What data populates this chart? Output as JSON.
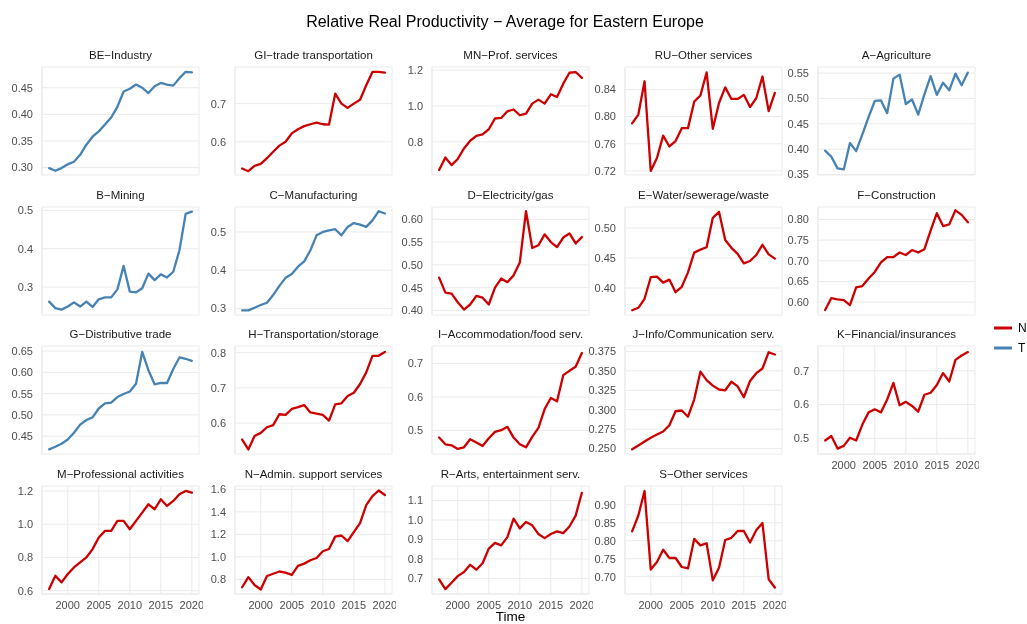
{
  "chart_data": [
    {
      "type": "line",
      "title": "BE−Industry",
      "annotations": [
        "Relative Real Productivity − Average for Eastern Europe"
      ],
      "tick_labels": "y",
      "grid": true,
      "x": [
        1997,
        1998,
        1999,
        2000,
        2001,
        2002,
        2003,
        2004,
        2005,
        2006,
        2007,
        2008,
        2009,
        2010,
        2011,
        2012,
        2013,
        2014,
        2015,
        2016,
        2017,
        2018,
        2019,
        2020
      ],
      "xlim": [
        1995.85,
        2021.15
      ],
      "xticks": [
        2000,
        2005,
        2010,
        2015,
        2020
      ],
      "ylim": [
        0.286,
        0.489
      ],
      "yticks": [
        {
          "value": 0.3,
          "label": "0.30"
        },
        {
          "value": 0.35,
          "label": "0.35"
        },
        {
          "value": 0.4,
          "label": "0.40"
        },
        0.45
      ],
      "series": [
        {
          "name": "T",
          "color": "#4682b4",
          "values": [
            0.299,
            0.294,
            0.299,
            0.306,
            0.311,
            0.324,
            0.343,
            0.358,
            0.368,
            0.381,
            0.394,
            0.414,
            0.443,
            0.448,
            0.456,
            0.45,
            0.44,
            0.453,
            0.459,
            0.456,
            0.454,
            0.468,
            0.48,
            0.479
          ]
        }
      ]
    },
    {
      "type": "line",
      "title": "GI−trade transportation",
      "tick_labels": "y",
      "grid": true,
      "x": [
        1997,
        1998,
        1999,
        2000,
        2001,
        2002,
        2003,
        2004,
        2005,
        2006,
        2007,
        2008,
        2009,
        2010,
        2011,
        2012,
        2013,
        2014,
        2015,
        2016,
        2017,
        2018,
        2019,
        2020
      ],
      "xlim": [
        1995.85,
        2021.15
      ],
      "xticks": [
        2000,
        2005,
        2010,
        2015,
        2020
      ],
      "ylim": [
        0.513,
        0.796
      ],
      "yticks": [
        0.6,
        0.7
      ],
      "series": [
        {
          "name": "N",
          "color": "#cc0000",
          "values": [
            0.53,
            0.523,
            0.537,
            0.542,
            0.557,
            0.574,
            0.59,
            0.6,
            0.622,
            0.633,
            0.641,
            0.646,
            0.65,
            0.646,
            0.645,
            0.726,
            0.7,
            0.689,
            0.7,
            0.71,
            0.748,
            0.783,
            0.783,
            0.781
          ]
        }
      ]
    },
    {
      "type": "line",
      "title": "MN−Prof. services",
      "tick_labels": "y",
      "grid": true,
      "x": [
        1997,
        1998,
        1999,
        2000,
        2001,
        2002,
        2003,
        2004,
        2005,
        2006,
        2007,
        2008,
        2009,
        2010,
        2011,
        2012,
        2013,
        2014,
        2015,
        2016,
        2017,
        2018,
        2019,
        2020
      ],
      "xlim": [
        1995.85,
        2021.15
      ],
      "xticks": [
        2000,
        2005,
        2010,
        2015,
        2020
      ],
      "ylim": [
        0.615,
        1.217
      ],
      "yticks": [
        0.8,
        {
          "value": 1,
          "label": "1.0"
        },
        1.2
      ],
      "series": [
        {
          "name": "N",
          "color": "#cc0000",
          "values": [
            0.643,
            0.713,
            0.67,
            0.704,
            0.763,
            0.806,
            0.833,
            0.841,
            0.87,
            0.93,
            0.933,
            0.97,
            0.98,
            0.948,
            0.957,
            1.013,
            1.035,
            1.013,
            1.065,
            1.05,
            1.124,
            1.185,
            1.189,
            1.156
          ]
        }
      ]
    },
    {
      "type": "line",
      "title": "RU−Other services",
      "tick_labels": "y",
      "grid": true,
      "x": [
        1997,
        1998,
        1999,
        2000,
        2001,
        2002,
        2003,
        2004,
        2005,
        2006,
        2007,
        2008,
        2009,
        2010,
        2011,
        2012,
        2013,
        2014,
        2015,
        2016,
        2017,
        2018,
        2019,
        2020
      ],
      "xlim": [
        1995.85,
        2021.15
      ],
      "xticks": [
        2000,
        2005,
        2010,
        2015,
        2020
      ],
      "ylim": [
        0.714,
        0.873
      ],
      "yticks": [
        0.72,
        0.76,
        {
          "value": 0.8,
          "label": "0.80"
        },
        0.84
      ],
      "series": [
        {
          "name": "N",
          "color": "#cc0000",
          "values": [
            0.79,
            0.803,
            0.852,
            0.72,
            0.739,
            0.772,
            0.756,
            0.764,
            0.783,
            0.783,
            0.822,
            0.831,
            0.865,
            0.782,
            0.82,
            0.843,
            0.826,
            0.826,
            0.832,
            0.814,
            0.827,
            0.859,
            0.808,
            0.835
          ]
        }
      ]
    },
    {
      "type": "line",
      "title": "A−Agriculture",
      "tick_labels": "y",
      "grid": true,
      "x": [
        1997,
        1998,
        1999,
        2000,
        2001,
        2002,
        2003,
        2004,
        2005,
        2006,
        2007,
        2008,
        2009,
        2010,
        2011,
        2012,
        2013,
        2014,
        2015,
        2016,
        2017,
        2018,
        2019,
        2020
      ],
      "xlim": [
        1995.85,
        2021.15
      ],
      "xticks": [
        2000,
        2005,
        2010,
        2015,
        2020
      ],
      "ylim": [
        0.349,
        0.562
      ],
      "yticks": [
        0.35,
        {
          "value": 0.4,
          "label": "0.40"
        },
        0.45,
        {
          "value": 0.5,
          "label": "0.50"
        },
        0.55
      ],
      "series": [
        {
          "name": "T",
          "color": "#4682b4",
          "values": [
            0.397,
            0.385,
            0.362,
            0.36,
            0.412,
            0.396,
            0.429,
            0.463,
            0.495,
            0.496,
            0.471,
            0.539,
            0.547,
            0.489,
            0.498,
            0.468,
            0.508,
            0.544,
            0.507,
            0.531,
            0.516,
            0.549,
            0.526,
            0.551
          ]
        }
      ]
    },
    {
      "type": "line",
      "title": "B−Mining",
      "tick_labels": "y",
      "grid": true,
      "x": [
        1997,
        1998,
        1999,
        2000,
        2001,
        2002,
        2003,
        2004,
        2005,
        2006,
        2007,
        2008,
        2009,
        2010,
        2011,
        2012,
        2013,
        2014,
        2015,
        2016,
        2017,
        2018,
        2019,
        2020
      ],
      "xlim": [
        1995.85,
        2021.15
      ],
      "xticks": [
        2000,
        2005,
        2010,
        2015,
        2020
      ],
      "ylim": [
        0.227,
        0.509
      ],
      "yticks": [
        0.3,
        0.4,
        0.5
      ],
      "series": [
        {
          "name": "T",
          "color": "#4682b4",
          "values": [
            0.262,
            0.245,
            0.241,
            0.249,
            0.26,
            0.249,
            0.262,
            0.248,
            0.268,
            0.273,
            0.273,
            0.294,
            0.355,
            0.288,
            0.286,
            0.297,
            0.335,
            0.318,
            0.333,
            0.325,
            0.34,
            0.396,
            0.491,
            0.497
          ]
        }
      ]
    },
    {
      "type": "line",
      "title": "C−Manufacturing",
      "tick_labels": "y",
      "grid": true,
      "x": [
        1997,
        1998,
        1999,
        2000,
        2001,
        2002,
        2003,
        2004,
        2005,
        2006,
        2007,
        2008,
        2009,
        2010,
        2011,
        2012,
        2013,
        2014,
        2015,
        2016,
        2017,
        2018,
        2019,
        2020
      ],
      "xlim": [
        1995.85,
        2021.15
      ],
      "xticks": [
        2000,
        2005,
        2010,
        2015,
        2020
      ],
      "ylim": [
        0.283,
        0.565
      ],
      "yticks": [
        0.3,
        0.4,
        0.5
      ],
      "series": [
        {
          "name": "T",
          "color": "#4682b4",
          "values": [
            0.295,
            0.295,
            0.302,
            0.309,
            0.315,
            0.335,
            0.359,
            0.38,
            0.39,
            0.409,
            0.423,
            0.452,
            0.491,
            0.5,
            0.504,
            0.507,
            0.491,
            0.513,
            0.523,
            0.519,
            0.513,
            0.53,
            0.554,
            0.548
          ]
        }
      ]
    },
    {
      "type": "line",
      "title": "D−Electricity/gas",
      "tick_labels": "y",
      "grid": true,
      "x": [
        1997,
        1998,
        1999,
        2000,
        2001,
        2002,
        2003,
        2004,
        2005,
        2006,
        2007,
        2008,
        2009,
        2010,
        2011,
        2012,
        2013,
        2014,
        2015,
        2016,
        2017,
        2018,
        2019,
        2020
      ],
      "xlim": [
        1995.85,
        2021.15
      ],
      "xticks": [
        2000,
        2005,
        2010,
        2015,
        2020
      ],
      "ylim": [
        0.39,
        0.627
      ],
      "yticks": [
        {
          "value": 0.4,
          "label": "0.40"
        },
        0.45,
        {
          "value": 0.5,
          "label": "0.50"
        },
        0.55,
        {
          "value": 0.6,
          "label": "0.60"
        }
      ],
      "series": [
        {
          "name": "N",
          "color": "#cc0000",
          "values": [
            0.472,
            0.439,
            0.437,
            0.418,
            0.402,
            0.413,
            0.432,
            0.428,
            0.413,
            0.45,
            0.47,
            0.462,
            0.477,
            0.505,
            0.618,
            0.537,
            0.543,
            0.567,
            0.55,
            0.539,
            0.56,
            0.569,
            0.547,
            0.561
          ]
        }
      ]
    },
    {
      "type": "line",
      "title": "E−Water/sewerage/waste",
      "tick_labels": "y",
      "grid": true,
      "x": [
        1997,
        1998,
        1999,
        2000,
        2001,
        2002,
        2003,
        2004,
        2005,
        2006,
        2007,
        2008,
        2009,
        2010,
        2011,
        2012,
        2013,
        2014,
        2015,
        2016,
        2017,
        2018,
        2019,
        2020
      ],
      "xlim": [
        1995.85,
        2021.15
      ],
      "xticks": [
        2000,
        2005,
        2010,
        2015,
        2020
      ],
      "ylim": [
        0.355,
        0.535
      ],
      "yticks": [
        {
          "value": 0.4,
          "label": "0.40"
        },
        0.45,
        {
          "value": 0.5,
          "label": "0.50"
        }
      ],
      "series": [
        {
          "name": "N",
          "color": "#cc0000",
          "values": [
            0.363,
            0.367,
            0.382,
            0.418,
            0.419,
            0.409,
            0.414,
            0.393,
            0.402,
            0.426,
            0.459,
            0.464,
            0.468,
            0.517,
            0.527,
            0.48,
            0.467,
            0.457,
            0.441,
            0.445,
            0.455,
            0.472,
            0.456,
            0.449
          ]
        }
      ]
    },
    {
      "type": "line",
      "title": "F−Construction",
      "tick_labels": "y",
      "grid": true,
      "x": [
        1997,
        1998,
        1999,
        2000,
        2001,
        2002,
        2003,
        2004,
        2005,
        2006,
        2007,
        2008,
        2009,
        2010,
        2011,
        2012,
        2013,
        2014,
        2015,
        2016,
        2017,
        2018,
        2019,
        2020
      ],
      "xlim": [
        1995.85,
        2021.15
      ],
      "xticks": [
        2000,
        2005,
        2010,
        2015,
        2020
      ],
      "ylim": [
        0.569,
        0.83
      ],
      "yticks": [
        {
          "value": 0.6,
          "label": "0.60"
        },
        0.65,
        {
          "value": 0.7,
          "label": "0.70"
        },
        0.75,
        {
          "value": 0.8,
          "label": "0.80"
        }
      ],
      "series": [
        {
          "name": "N",
          "color": "#cc0000",
          "values": [
            0.581,
            0.61,
            0.607,
            0.605,
            0.593,
            0.636,
            0.639,
            0.657,
            0.673,
            0.696,
            0.709,
            0.709,
            0.72,
            0.714,
            0.726,
            0.72,
            0.728,
            0.773,
            0.815,
            0.784,
            0.788,
            0.822,
            0.811,
            0.793
          ]
        }
      ]
    },
    {
      "type": "line",
      "title": "G−Distributive trade",
      "tick_labels": "y",
      "grid": true,
      "x": [
        1997,
        1998,
        1999,
        2000,
        2001,
        2002,
        2003,
        2004,
        2005,
        2006,
        2007,
        2008,
        2009,
        2010,
        2011,
        2012,
        2013,
        2014,
        2015,
        2016,
        2017,
        2018,
        2019,
        2020
      ],
      "xlim": [
        1995.85,
        2021.15
      ],
      "xticks": [
        2000,
        2005,
        2010,
        2015,
        2020
      ],
      "ylim": [
        0.408,
        0.662
      ],
      "yticks": [
        0.45,
        {
          "value": 0.5,
          "label": "0.50"
        },
        0.55,
        {
          "value": 0.6,
          "label": "0.60"
        },
        0.65
      ],
      "series": [
        {
          "name": "T",
          "color": "#4682b4",
          "values": [
            0.419,
            0.425,
            0.432,
            0.442,
            0.458,
            0.477,
            0.488,
            0.494,
            0.515,
            0.527,
            0.529,
            0.542,
            0.549,
            0.555,
            0.573,
            0.648,
            0.605,
            0.572,
            0.575,
            0.575,
            0.608,
            0.635,
            0.632,
            0.627
          ]
        }
      ]
    },
    {
      "type": "line",
      "title": "H−Transportation/storage",
      "tick_labels": "y",
      "grid": true,
      "x": [
        1997,
        1998,
        1999,
        2000,
        2001,
        2002,
        2003,
        2004,
        2005,
        2006,
        2007,
        2008,
        2009,
        2010,
        2011,
        2012,
        2013,
        2014,
        2015,
        2016,
        2017,
        2018,
        2019,
        2020
      ],
      "xlim": [
        1995.85,
        2021.15
      ],
      "xticks": [
        2000,
        2005,
        2010,
        2015,
        2020
      ],
      "ylim": [
        0.512,
        0.819
      ],
      "yticks": [
        0.6,
        0.7,
        0.8
      ],
      "series": [
        {
          "name": "N",
          "color": "#cc0000",
          "values": [
            0.553,
            0.525,
            0.563,
            0.572,
            0.588,
            0.594,
            0.625,
            0.623,
            0.64,
            0.645,
            0.651,
            0.63,
            0.627,
            0.623,
            0.607,
            0.653,
            0.656,
            0.677,
            0.686,
            0.711,
            0.744,
            0.791,
            0.791,
            0.802
          ]
        }
      ]
    },
    {
      "type": "line",
      "title": "I−Accommodation/food serv.",
      "tick_labels": "y",
      "grid": true,
      "x": [
        1997,
        1998,
        1999,
        2000,
        2001,
        2002,
        2003,
        2004,
        2005,
        2006,
        2007,
        2008,
        2009,
        2010,
        2011,
        2012,
        2013,
        2014,
        2015,
        2016,
        2017,
        2018,
        2019,
        2020
      ],
      "xlim": [
        1995.85,
        2021.15
      ],
      "xticks": [
        2000,
        2005,
        2010,
        2015,
        2020
      ],
      "ylim": [
        0.43,
        0.752
      ],
      "yticks": [
        0.5,
        0.6,
        0.7
      ],
      "series": [
        {
          "name": "N",
          "color": "#cc0000",
          "values": [
            0.479,
            0.459,
            0.456,
            0.445,
            0.45,
            0.474,
            0.464,
            0.454,
            0.477,
            0.496,
            0.501,
            0.511,
            0.479,
            0.459,
            0.45,
            0.481,
            0.508,
            0.564,
            0.597,
            0.587,
            0.665,
            0.678,
            0.69,
            0.731
          ]
        }
      ]
    },
    {
      "type": "line",
      "title": "J−Info/Communication serv.",
      "tick_labels": "y",
      "grid": true,
      "x": [
        1997,
        1998,
        1999,
        2000,
        2001,
        2002,
        2003,
        2004,
        2005,
        2006,
        2007,
        2008,
        2009,
        2010,
        2011,
        2012,
        2013,
        2014,
        2015,
        2016,
        2017,
        2018,
        2019,
        2020
      ],
      "xlim": [
        1995.85,
        2021.15
      ],
      "xticks": [
        2000,
        2005,
        2010,
        2015,
        2020
      ],
      "ylim": [
        0.243,
        0.382
      ],
      "yticks": [
        {
          "value": 0.25,
          "label": "0.250"
        },
        0.275,
        {
          "value": 0.3,
          "label": "0.300"
        },
        0.325,
        {
          "value": 0.35,
          "label": "0.350"
        },
        0.375
      ],
      "series": [
        {
          "name": "N",
          "color": "#cc0000",
          "values": [
            0.249,
            0.254,
            0.259,
            0.264,
            0.268,
            0.272,
            0.28,
            0.298,
            0.299,
            0.291,
            0.313,
            0.349,
            0.338,
            0.331,
            0.326,
            0.325,
            0.336,
            0.33,
            0.316,
            0.337,
            0.347,
            0.353,
            0.374,
            0.371
          ]
        }
      ]
    },
    {
      "type": "line",
      "title": "K−Financial/insurances",
      "legend": "right",
      "grid": true,
      "x": [
        1997,
        1998,
        1999,
        2000,
        2001,
        2002,
        2003,
        2004,
        2005,
        2006,
        2007,
        2008,
        2009,
        2010,
        2011,
        2012,
        2013,
        2014,
        2015,
        2016,
        2017,
        2018,
        2019,
        2020
      ],
      "xlim": [
        1995.85,
        2021.15
      ],
      "xticks": [
        2000,
        2005,
        2010,
        2015,
        2020
      ],
      "ylim": [
        0.454,
        0.773
      ],
      "yticks": [
        0.5,
        0.6,
        0.7
      ],
      "series": [
        {
          "name": "N",
          "color": "#cc0000",
          "values": [
            0.494,
            0.507,
            0.47,
            0.478,
            0.502,
            0.494,
            0.541,
            0.577,
            0.586,
            0.577,
            0.615,
            0.664,
            0.598,
            0.608,
            0.596,
            0.579,
            0.629,
            0.635,
            0.658,
            0.693,
            0.668,
            0.732,
            0.745,
            0.755
          ]
        }
      ]
    },
    {
      "type": "line",
      "title": "M−Professional activities",
      "grid": true,
      "x": [
        1997,
        1998,
        1999,
        2000,
        2001,
        2002,
        2003,
        2004,
        2005,
        2006,
        2007,
        2008,
        2009,
        2010,
        2011,
        2012,
        2013,
        2014,
        2015,
        2016,
        2017,
        2018,
        2019,
        2020
      ],
      "xlim": [
        1995.85,
        2021.15
      ],
      "xticks": [
        2000,
        2005,
        2010,
        2015,
        2020
      ],
      "ylim": [
        0.58,
        1.23
      ],
      "yticks": [
        0.6,
        0.8,
        {
          "value": 1,
          "label": "1.0"
        },
        1.2
      ],
      "series": [
        {
          "name": "N",
          "color": "#cc0000",
          "values": [
            0.61,
            0.69,
            0.65,
            0.7,
            0.74,
            0.77,
            0.8,
            0.85,
            0.92,
            0.96,
            0.96,
            1.02,
            1.02,
            0.97,
            1.02,
            1.07,
            1.12,
            1.09,
            1.15,
            1.11,
            1.14,
            1.18,
            1.2,
            1.19
          ]
        }
      ]
    },
    {
      "type": "line",
      "title": "N−Admin. support services",
      "grid": true,
      "x": [
        1997,
        1998,
        1999,
        2000,
        2001,
        2002,
        2003,
        2004,
        2005,
        2006,
        2007,
        2008,
        2009,
        2010,
        2011,
        2012,
        2013,
        2014,
        2015,
        2016,
        2017,
        2018,
        2019,
        2020
      ],
      "xlim": [
        1995.85,
        2021.15
      ],
      "xticks": [
        2000,
        2005,
        2010,
        2015,
        2020
      ],
      "ylim": [
        0.67,
        1.63
      ],
      "yticks": [
        0.8,
        {
          "value": 1,
          "label": "1.0"
        },
        1.2,
        1.4,
        1.6
      ],
      "series": [
        {
          "name": "N",
          "color": "#cc0000",
          "values": [
            0.73,
            0.82,
            0.75,
            0.71,
            0.83,
            0.85,
            0.87,
            0.86,
            0.84,
            0.92,
            0.94,
            0.97,
            0.99,
            1.05,
            1.07,
            1.18,
            1.19,
            1.14,
            1.22,
            1.3,
            1.46,
            1.54,
            1.59,
            1.55
          ]
        }
      ]
    },
    {
      "type": "line",
      "title": "R−Arts, entertainment serv.",
      "xlabel": "Time",
      "grid": true,
      "x": [
        1997,
        1998,
        1999,
        2000,
        2001,
        2002,
        2003,
        2004,
        2005,
        2006,
        2007,
        2008,
        2009,
        2010,
        2011,
        2012,
        2013,
        2014,
        2015,
        2016,
        2017,
        2018,
        2019,
        2020
      ],
      "xlim": [
        1995.85,
        2021.15
      ],
      "xticks": [
        2000,
        2005,
        2010,
        2015,
        2020
      ],
      "ylim": [
        0.62,
        1.175
      ],
      "yticks": [
        0.7,
        0.8,
        0.9,
        {
          "value": 1,
          "label": "1.0"
        },
        1.1
      ],
      "series": [
        {
          "name": "N",
          "color": "#cc0000",
          "values": [
            0.695,
            0.645,
            0.678,
            0.712,
            0.733,
            0.77,
            0.745,
            0.778,
            0.853,
            0.883,
            0.87,
            0.912,
            1.007,
            0.957,
            0.99,
            0.973,
            0.928,
            0.907,
            0.928,
            0.942,
            0.933,
            0.967,
            1.023,
            1.14
          ]
        }
      ]
    },
    {
      "type": "line",
      "title": "S−Other services",
      "grid": true,
      "x": [
        1997,
        1998,
        1999,
        2000,
        2001,
        2002,
        2003,
        2004,
        2005,
        2006,
        2007,
        2008,
        2009,
        2010,
        2011,
        2012,
        2013,
        2014,
        2015,
        2016,
        2017,
        2018,
        2019,
        2020
      ],
      "xlim": [
        1995.85,
        2021.15
      ],
      "xticks": [
        2000,
        2005,
        2010,
        2015,
        2020
      ],
      "ylim": [
        0.652,
        0.952
      ],
      "yticks": [
        {
          "value": 0.7,
          "label": "0.70"
        },
        0.75,
        {
          "value": 0.8,
          "label": "0.80"
        },
        0.85,
        {
          "value": 0.9,
          "label": "0.90"
        }
      ],
      "series": [
        {
          "name": "N",
          "color": "#cc0000",
          "values": [
            0.826,
            0.87,
            0.938,
            0.72,
            0.741,
            0.775,
            0.752,
            0.752,
            0.727,
            0.723,
            0.805,
            0.787,
            0.793,
            0.69,
            0.725,
            0.802,
            0.808,
            0.827,
            0.827,
            0.795,
            0.829,
            0.849,
            0.693,
            0.67
          ]
        }
      ]
    }
  ]
}
